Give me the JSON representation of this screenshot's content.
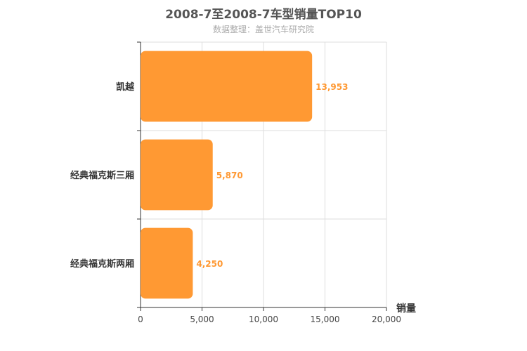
{
  "header": {
    "title": "2008-7至2008-7车型销量TOP10",
    "subtitle": "数据整理：盖世汽车研究院"
  },
  "chart_data": {
    "type": "bar",
    "orientation": "horizontal",
    "title": "2008-7至2008-7车型销量TOP10",
    "subtitle": "数据整理：盖世汽车研究院",
    "categories": [
      "凯越",
      "经典福克斯三厢",
      "经典福克斯两厢"
    ],
    "values": [
      13953,
      5870,
      4250
    ],
    "value_labels": [
      "13,953",
      "5,870",
      "4,250"
    ],
    "xlabel": "销量",
    "ylabel": "",
    "xlim": [
      0,
      20000
    ],
    "x_ticks": [
      0,
      5000,
      10000,
      15000,
      20000
    ],
    "x_tick_labels": [
      "0",
      "5,000",
      "10,000",
      "15,000",
      "20,000"
    ],
    "grid": true,
    "bar_color": "#ff9933",
    "label_color": "#ff9933"
  }
}
